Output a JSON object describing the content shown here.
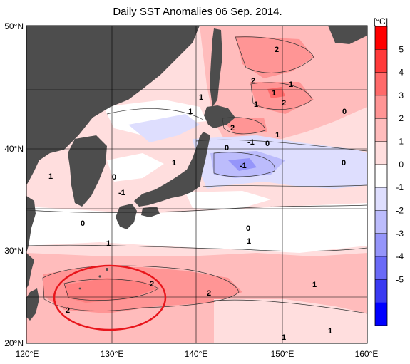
{
  "title": "Daily SST Anomalies 06 Sep. 2014.",
  "latitude_labels": [
    "50°N",
    "40°N",
    "30°N",
    "20°N"
  ],
  "longitude_labels": [
    "120°E",
    "130°E",
    "140°E",
    "150°E",
    "160°E"
  ],
  "colorbar": {
    "unit": "[°C]",
    "ticks": [
      "5",
      "4",
      "3",
      "2",
      "1",
      "0",
      "-1",
      "-2",
      "-3",
      "-4",
      "-5"
    ],
    "colors": [
      "#ff0000",
      "#ff3a3a",
      "#ff6a6a",
      "#ff9595",
      "#ffbcbc",
      "#ffdede",
      "#ffffff",
      "#dedefe",
      "#bcbcfc",
      "#9595fa",
      "#6a6af7",
      "#3a3af2",
      "#0000ff"
    ]
  },
  "contour_labels": [
    {
      "text": "2"
    },
    {
      "text": "2"
    },
    {
      "text": "1"
    },
    {
      "text": "1"
    },
    {
      "text": "2"
    },
    {
      "text": "1"
    },
    {
      "text": "1"
    },
    {
      "text": "1"
    },
    {
      "text": "0"
    },
    {
      "text": "2"
    },
    {
      "text": "1"
    },
    {
      "text": "0"
    },
    {
      "text": "-1"
    },
    {
      "text": "0"
    },
    {
      "text": "0"
    },
    {
      "text": "1"
    },
    {
      "text": "-1"
    },
    {
      "text": "1"
    },
    {
      "text": "0"
    },
    {
      "text": "-1"
    },
    {
      "text": "0"
    },
    {
      "text": "0"
    },
    {
      "text": "1"
    },
    {
      "text": "1"
    },
    {
      "text": "2"
    },
    {
      "text": "2"
    },
    {
      "text": "2"
    },
    {
      "text": "1"
    },
    {
      "text": "1"
    },
    {
      "text": "1"
    }
  ],
  "colors": {
    "land": "#4d4d4d",
    "highlight_ellipse": "#e8161c",
    "grid": "#000000"
  }
}
